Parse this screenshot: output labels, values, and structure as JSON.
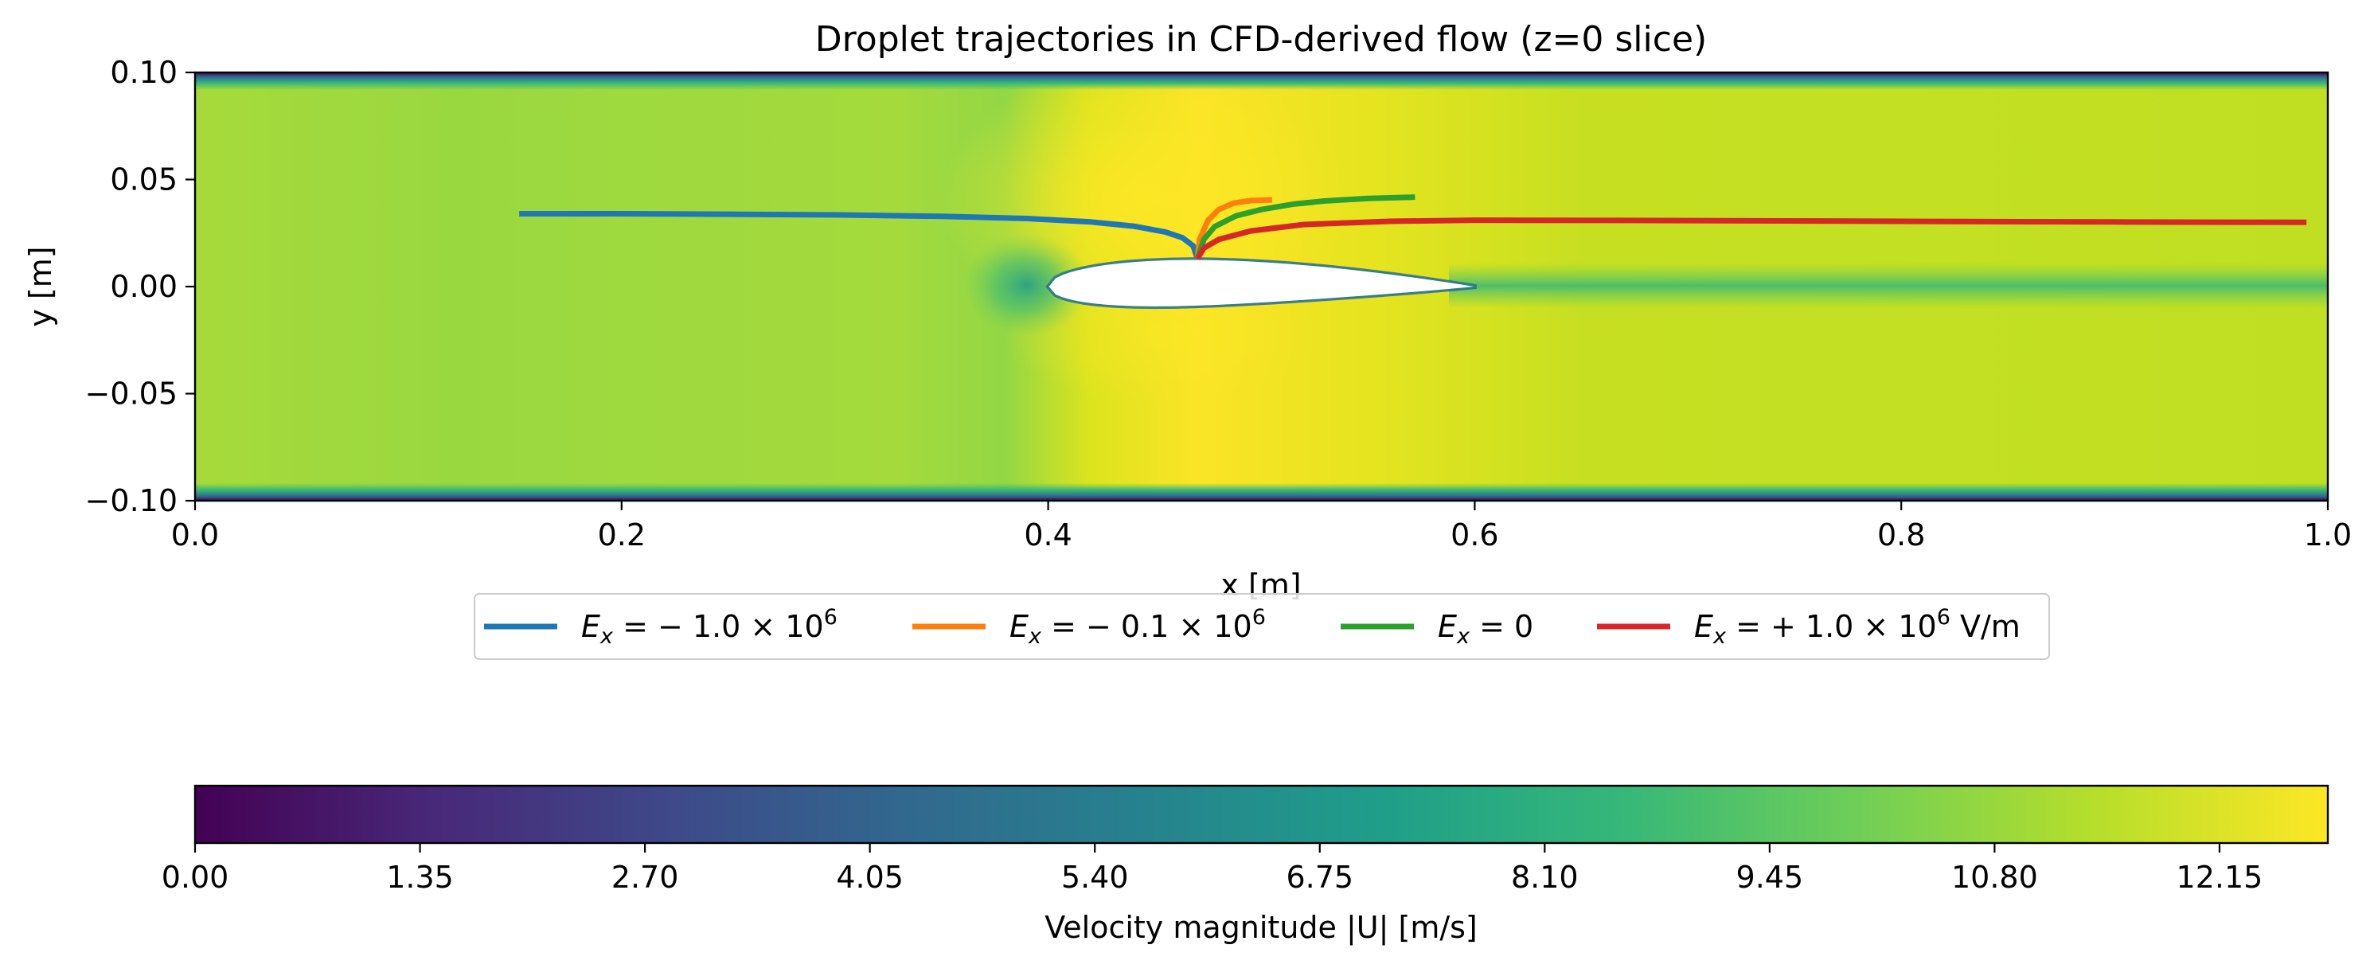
{
  "chart_data": {
    "type": "line",
    "title": "Droplet trajectories in CFD-derived flow (z=0 slice)",
    "xlabel": "x [m]",
    "ylabel": "y [m]",
    "xlim": [
      0.0,
      1.0
    ],
    "ylim": [
      -0.1,
      0.1
    ],
    "x_ticks": [
      0.0,
      0.2,
      0.4,
      0.6,
      0.8,
      1.0
    ],
    "x_tick_labels": [
      "0.0",
      "0.2",
      "0.4",
      "0.6",
      "0.8",
      "1.0"
    ],
    "y_ticks": [
      0.1,
      0.05,
      0.0,
      -0.05,
      -0.1
    ],
    "y_tick_labels": [
      "0.10",
      "0.05",
      "0.00",
      "−0.05",
      "−0.10"
    ],
    "series": [
      {
        "name": "Ex = −1.0×10^6",
        "legend": {
          "pre": "E",
          "sub": "x",
          "body": " = − 1.0 × 10",
          "sup": "6",
          "post": ""
        },
        "color": "#1f77b4",
        "x": [
          0.152,
          0.2,
          0.25,
          0.3,
          0.35,
          0.39,
          0.42,
          0.44,
          0.455,
          0.463,
          0.468,
          0.47
        ],
        "y": [
          0.034,
          0.034,
          0.0338,
          0.0335,
          0.0328,
          0.0318,
          0.0302,
          0.0282,
          0.0255,
          0.0228,
          0.019,
          0.013
        ]
      },
      {
        "name": "Ex = −0.1×10^6",
        "legend": {
          "pre": "E",
          "sub": "x",
          "body": " = − 0.1 × 10",
          "sup": "6",
          "post": ""
        },
        "color": "#ff7f0e",
        "x": [
          0.47,
          0.471,
          0.475,
          0.48,
          0.487,
          0.495,
          0.505
        ],
        "y": [
          0.013,
          0.022,
          0.031,
          0.036,
          0.039,
          0.0402,
          0.0405
        ]
      },
      {
        "name": "Ex = 0",
        "legend": {
          "pre": "E",
          "sub": "x",
          "body": " = 0",
          "sup": "",
          "post": ""
        },
        "color": "#2ca02c",
        "x": [
          0.47,
          0.473,
          0.478,
          0.488,
          0.5,
          0.515,
          0.53,
          0.55,
          0.572
        ],
        "y": [
          0.013,
          0.022,
          0.028,
          0.033,
          0.036,
          0.0385,
          0.04,
          0.0412,
          0.0418
        ]
      },
      {
        "name": "Ex = +1.0×10^6 V/m",
        "legend": {
          "pre": "E",
          "sub": "x",
          "body": " = + 1.0 × 10",
          "sup": "6",
          "post": " V/m"
        },
        "color": "#d62728",
        "x": [
          0.47,
          0.473,
          0.48,
          0.495,
          0.52,
          0.56,
          0.6,
          0.7,
          0.8,
          0.9,
          0.99
        ],
        "y": [
          0.013,
          0.018,
          0.022,
          0.026,
          0.029,
          0.0305,
          0.031,
          0.0308,
          0.0305,
          0.0302,
          0.03
        ]
      }
    ],
    "airfoil": {
      "leading_edge_x": 0.4,
      "trailing_edge_x": 0.6,
      "max_thickness_y_top": 0.011,
      "max_thickness_y_bottom": -0.011
    },
    "colorbar": {
      "label": "Velocity magnitude |U| [m/s]",
      "colormap": "viridis",
      "range": [
        0.0,
        12.8
      ],
      "ticks": [
        0.0,
        1.35,
        2.7,
        4.05,
        5.4,
        6.75,
        8.1,
        9.45,
        10.8,
        12.15
      ],
      "tick_labels": [
        "0.00",
        "1.35",
        "2.70",
        "4.05",
        "5.40",
        "6.75",
        "8.10",
        "9.45",
        "10.80",
        "12.15"
      ],
      "colors": [
        "#440154",
        "#482878",
        "#3e4989",
        "#31688e",
        "#26828e",
        "#1f9e89",
        "#35b779",
        "#6ece58",
        "#b5de2b",
        "#fde725"
      ]
    },
    "legend_position": "below-axes"
  }
}
